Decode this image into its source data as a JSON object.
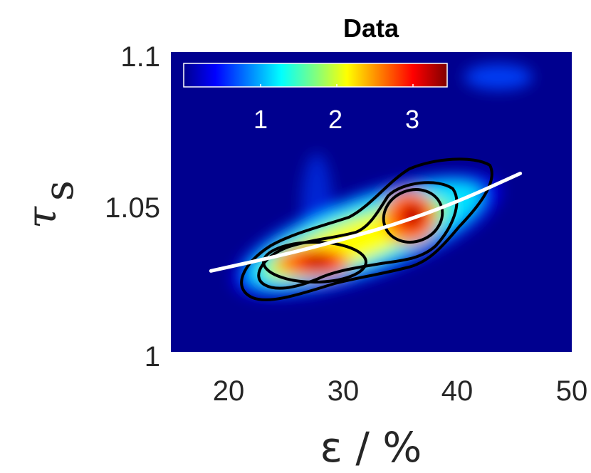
{
  "chart_data": {
    "type": "heatmap",
    "title": "Data",
    "xlabel": "ε / %",
    "ylabel_symbol": "τ",
    "ylabel_subscript": "s",
    "xlim": [
      15,
      50
    ],
    "ylim": [
      1.0,
      1.1
    ],
    "xticks": [
      "20",
      "30",
      "40",
      "50"
    ],
    "xtick_values": [
      20,
      30,
      40,
      50
    ],
    "yticks": [
      "1",
      "1.05",
      "1.1"
    ],
    "ytick_values": [
      1.0,
      1.05,
      1.1
    ],
    "colormap": "jet",
    "colorbar": {
      "orientation": "horizontal",
      "location": "inside top-left",
      "range": [
        0,
        3.6
      ],
      "ticks": [
        "1",
        "2",
        "3"
      ],
      "tick_values": [
        1,
        2,
        3
      ],
      "tick_color": "#ffffff"
    },
    "density_peaks": [
      {
        "x": 28,
        "y": 1.0305,
        "value": 3.5
      },
      {
        "x": 36.5,
        "y": 1.0455,
        "value": 3.5
      },
      {
        "x": 43.5,
        "y": 1.093,
        "value": 0.6
      }
    ],
    "contour_levels": [
      1,
      2,
      3
    ],
    "contour_color": "#000000",
    "fit_line": {
      "color": "#ffffff",
      "x": [
        18.5,
        25,
        30,
        35,
        40,
        45.5
      ],
      "y": [
        1.027,
        1.0325,
        1.0375,
        1.043,
        1.05,
        1.0595
      ]
    }
  }
}
